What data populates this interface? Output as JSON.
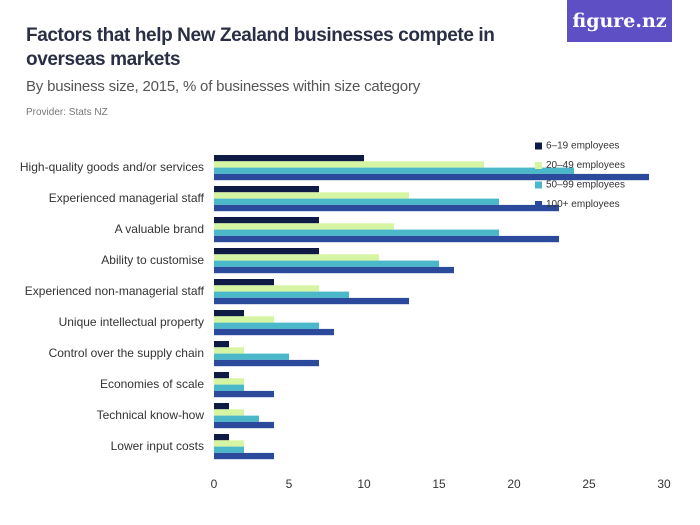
{
  "logo": "figure.nz",
  "chart_data": {
    "type": "barh",
    "title": "Factors that help New Zealand businesses compete in overseas markets",
    "subtitle": "By business size, 2015, % of businesses within size category",
    "provider": "Provider: Stats NZ",
    "categories": [
      "High-quality goods and/or services",
      "Experienced managerial staff",
      "A valuable brand",
      "Ability to customise",
      "Experienced non-managerial staff",
      "Unique intellectual property",
      "Control over the supply chain",
      "Economies of scale",
      "Technical know-how",
      "Lower input costs"
    ],
    "series": [
      {
        "name": "6–19 employees",
        "color": "#0f1a45",
        "values": [
          10,
          7,
          7,
          7,
          4,
          2,
          1,
          1,
          1,
          1
        ]
      },
      {
        "name": "20–49 employees",
        "color": "#d6f5a2",
        "values": [
          18,
          13,
          12,
          11,
          7,
          4,
          2,
          2,
          2,
          2
        ]
      },
      {
        "name": "50–99 employees",
        "color": "#4bb8c9",
        "values": [
          24,
          19,
          19,
          15,
          9,
          7,
          5,
          2,
          3,
          2
        ]
      },
      {
        "name": "100+ employees",
        "color": "#2c4a9c",
        "values": [
          29,
          23,
          23,
          16,
          13,
          8,
          7,
          4,
          4,
          4
        ]
      }
    ],
    "xlim": [
      0,
      30
    ],
    "xticks": [
      0,
      5,
      10,
      15,
      20,
      25,
      30
    ],
    "grid": false,
    "legend": "top-right"
  }
}
